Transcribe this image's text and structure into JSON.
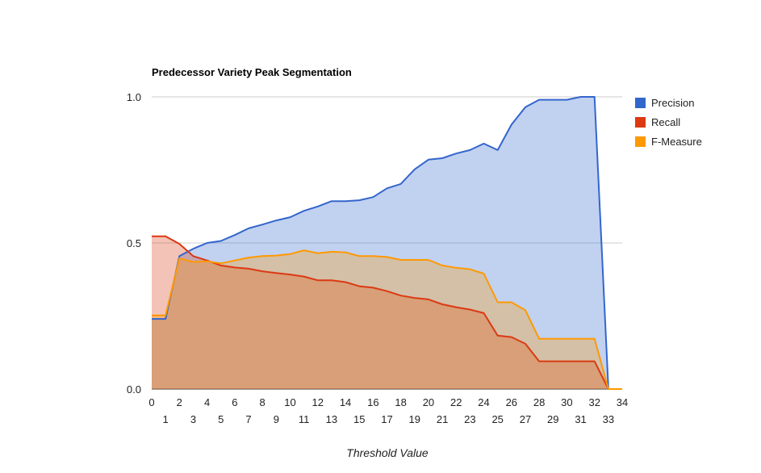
{
  "chart_data": {
    "type": "area",
    "title": "Predecessor Variety Peak Segmentation",
    "xlabel": "Threshold Value",
    "ylabel": "",
    "x": [
      0,
      1,
      2,
      3,
      4,
      5,
      6,
      7,
      8,
      9,
      10,
      11,
      12,
      13,
      14,
      15,
      16,
      17,
      18,
      19,
      20,
      21,
      22,
      23,
      24,
      25,
      26,
      27,
      28,
      29,
      30,
      31,
      32,
      33,
      34
    ],
    "ylim": [
      0,
      1.0
    ],
    "yticks": [
      "0.0",
      "0.5",
      "1.0"
    ],
    "xticks_upper": [
      "0",
      "2",
      "4",
      "6",
      "8",
      "10",
      "12",
      "14",
      "16",
      "18",
      "20",
      "22",
      "24",
      "26",
      "28",
      "30",
      "32",
      "34"
    ],
    "xticks_lower": [
      "1",
      "3",
      "5",
      "7",
      "9",
      "11",
      "13",
      "15",
      "17",
      "19",
      "21",
      "23",
      "25",
      "27",
      "29",
      "31",
      "33"
    ],
    "grid": true,
    "legend_position": "right",
    "series": [
      {
        "name": "Precision",
        "color": "#3366cc",
        "values": [
          0.24,
          0.24,
          0.455,
          0.48,
          0.5,
          0.507,
          0.527,
          0.55,
          0.563,
          0.577,
          0.588,
          0.61,
          0.625,
          0.643,
          0.643,
          0.646,
          0.657,
          0.687,
          0.702,
          0.752,
          0.785,
          0.79,
          0.806,
          0.818,
          0.84,
          0.818,
          0.905,
          0.965,
          0.99,
          0.99,
          0.99,
          1.0,
          1.0,
          0.0,
          0.0
        ]
      },
      {
        "name": "Recall",
        "color": "#dc3912",
        "values": [
          0.523,
          0.523,
          0.497,
          0.455,
          0.44,
          0.423,
          0.416,
          0.412,
          0.403,
          0.397,
          0.392,
          0.385,
          0.372,
          0.372,
          0.366,
          0.352,
          0.347,
          0.335,
          0.32,
          0.312,
          0.307,
          0.29,
          0.28,
          0.272,
          0.26,
          0.183,
          0.178,
          0.155,
          0.095,
          0.095,
          0.095,
          0.095,
          0.095,
          0.0,
          0.0
        ]
      },
      {
        "name": "F-Measure",
        "color": "#ff9900",
        "values": [
          0.252,
          0.252,
          0.447,
          0.435,
          0.437,
          0.43,
          0.44,
          0.45,
          0.455,
          0.457,
          0.462,
          0.475,
          0.465,
          0.47,
          0.468,
          0.455,
          0.455,
          0.452,
          0.442,
          0.442,
          0.442,
          0.423,
          0.415,
          0.41,
          0.395,
          0.297,
          0.297,
          0.27,
          0.172,
          0.172,
          0.172,
          0.172,
          0.172,
          0.0,
          0.0
        ]
      }
    ]
  }
}
